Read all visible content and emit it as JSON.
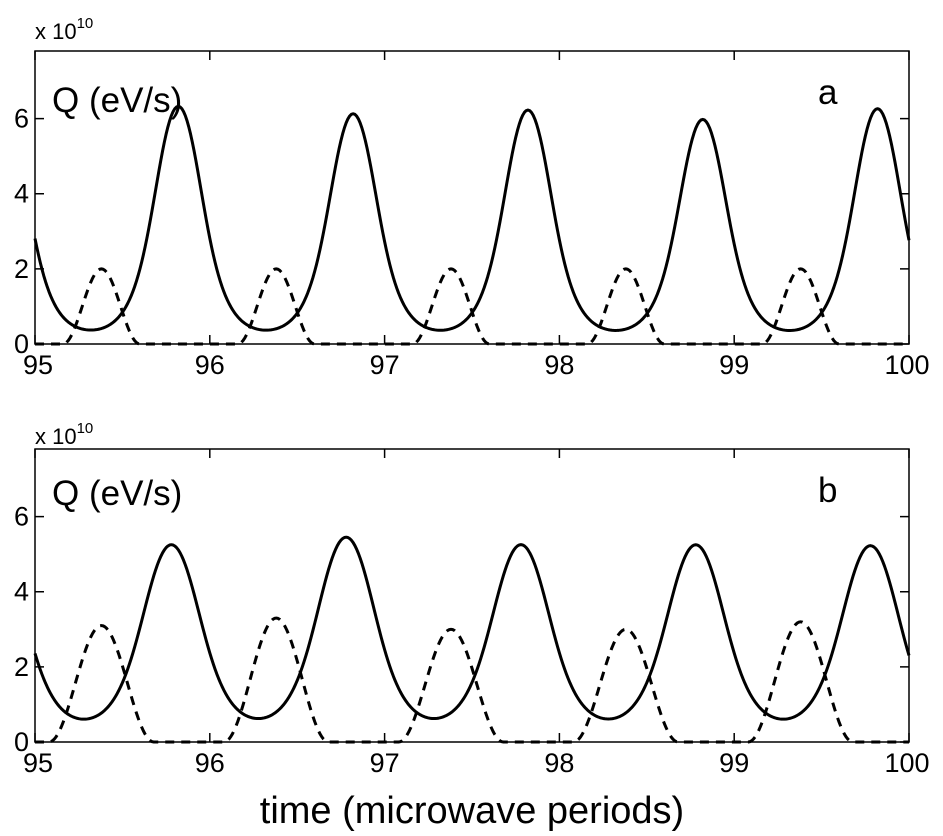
{
  "chart_data": [
    {
      "type": "line",
      "panel_label": "a",
      "ylabel": "Q (eV/s)",
      "y_multiplier": "x 10",
      "y_multiplier_exp": "10",
      "xlim": [
        95,
        100
      ],
      "ylim": [
        0,
        7.8
      ],
      "xticks": [
        95,
        96,
        97,
        98,
        99,
        100
      ],
      "yticks": [
        0,
        2,
        4,
        6
      ],
      "grid": false,
      "series": [
        {
          "style": "solid",
          "peak_times": [
            95.82,
            96.82,
            97.82,
            98.82,
            99.82
          ],
          "peak_values": [
            6.3,
            6.1,
            6.2,
            5.95,
            6.25
          ],
          "peak_halfwidth": 0.45,
          "phase_start_value": 1.2
        },
        {
          "style": "dashed",
          "peak_times": [
            95.38,
            96.38,
            97.38,
            98.38,
            99.38
          ],
          "peak_values": [
            2.0,
            2.0,
            2.0,
            2.0,
            2.0
          ],
          "peak_halfwidth": 0.22
        }
      ]
    },
    {
      "type": "line",
      "panel_label": "b",
      "ylabel": "Q (eV/s)",
      "xlabel": "time (microwave periods)",
      "y_multiplier": "x 10",
      "y_multiplier_exp": "10",
      "xlim": [
        95,
        100
      ],
      "ylim": [
        0,
        7.8
      ],
      "xticks": [
        95,
        96,
        97,
        98,
        99,
        100
      ],
      "yticks": [
        0,
        2,
        4,
        6
      ],
      "grid": false,
      "series": [
        {
          "style": "solid",
          "peak_times": [
            95.78,
            96.78,
            97.78,
            98.78,
            99.78
          ],
          "peak_values": [
            5.2,
            5.4,
            5.2,
            5.2,
            5.2
          ],
          "peak_halfwidth": 0.55,
          "phase_start_value": 0.9
        },
        {
          "style": "dashed",
          "peak_times": [
            95.38,
            96.38,
            97.38,
            98.38,
            99.38
          ],
          "peak_values": [
            3.1,
            3.3,
            3.0,
            3.0,
            3.2
          ],
          "peak_halfwidth": 0.3
        }
      ]
    }
  ]
}
